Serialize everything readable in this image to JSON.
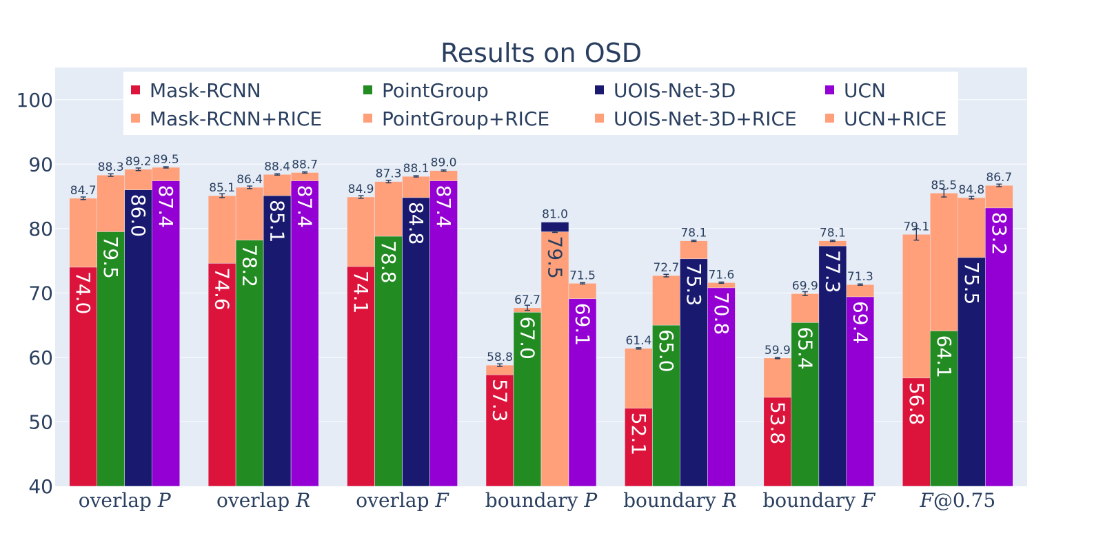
{
  "chart_data": {
    "type": "bar",
    "mode": "overlay-stacked",
    "title": "Results on OSD",
    "categories": [
      "overlap P",
      "overlap R",
      "overlap F",
      "boundary P",
      "boundary R",
      "boundary F",
      "F@0.75"
    ],
    "category_labels": [
      {
        "text": "overlap ",
        "italic": "P"
      },
      {
        "text": "overlap ",
        "italic": "R"
      },
      {
        "text": "overlap ",
        "italic": "F"
      },
      {
        "text": "boundary ",
        "italic": "P"
      },
      {
        "text": "boundary ",
        "italic": "R"
      },
      {
        "text": "boundary ",
        "italic": "F"
      },
      {
        "text": "@0.75",
        "italic_prefix": "F"
      }
    ],
    "ylim": [
      40,
      105
    ],
    "yticks": [
      40,
      50,
      60,
      70,
      80,
      90,
      100
    ],
    "grid": true,
    "legend_position": "top",
    "series": [
      {
        "name": "Mask-RCNN",
        "color": "#dc143c",
        "label_color": "#ffffff",
        "values": [
          74.0,
          74.6,
          74.1,
          57.3,
          52.1,
          53.8,
          56.8
        ],
        "labels": [
          "74.0",
          "74.6",
          "74.1",
          "57.3",
          "52.1",
          "53.8",
          "56.8"
        ],
        "rice_name": "Mask-RCNN+RICE",
        "rice_values": [
          84.7,
          85.1,
          84.9,
          58.8,
          61.4,
          59.9,
          79.1
        ],
        "rice_labels": [
          "84.7",
          "85.1",
          "84.9",
          "58.8",
          "61.4",
          "59.9",
          "79.1"
        ],
        "rice_err": [
          0.2,
          0.3,
          0.2,
          0.2,
          0.1,
          0.1,
          0.9
        ]
      },
      {
        "name": "PointGroup",
        "color": "#228b22",
        "label_color": "#ffffff",
        "values": [
          79.5,
          78.2,
          78.8,
          67.0,
          65.0,
          65.4,
          64.1
        ],
        "labels": [
          "79.5",
          "78.2",
          "78.8",
          "67.0",
          "65.0",
          "65.4",
          "64.1"
        ],
        "rice_name": "PointGroup+RICE",
        "rice_values": [
          88.3,
          86.4,
          87.3,
          67.7,
          72.7,
          69.9,
          85.5
        ],
        "rice_labels": [
          "88.3",
          "86.4",
          "87.3",
          "67.7",
          "72.7",
          "69.9",
          "85.5"
        ],
        "rice_err": [
          0.2,
          0.2,
          0.2,
          0.4,
          0.2,
          0.3,
          0.6
        ]
      },
      {
        "name": "UOIS-Net-3D",
        "color": "#191970",
        "label_color": "#ffffff",
        "values": [
          86.0,
          85.1,
          84.8,
          81.0,
          75.3,
          77.3,
          75.5
        ],
        "labels": [
          "86.0",
          "85.1",
          "84.8",
          "81.0",
          "75.3",
          "77.3",
          "75.5"
        ],
        "rice_name": "UOIS-Net-3D+RICE",
        "rice_values": [
          89.2,
          88.4,
          88.1,
          79.5,
          78.1,
          78.1,
          84.8
        ],
        "rice_labels": [
          "89.2",
          "88.4",
          "88.1",
          "79.5",
          "78.1",
          "78.1",
          "84.8"
        ],
        "rice_err": [
          0.2,
          0.1,
          0.1,
          0.1,
          0.1,
          0.1,
          0.2
        ]
      },
      {
        "name": "UCN",
        "color": "#9400d3",
        "label_color": "#ffffff",
        "values": [
          87.4,
          87.4,
          87.4,
          69.1,
          70.8,
          69.4,
          83.2
        ],
        "labels": [
          "87.4",
          "87.4",
          "87.4",
          "69.1",
          "70.8",
          "69.4",
          "83.2"
        ],
        "rice_name": "UCN+RICE",
        "rice_values": [
          89.5,
          88.7,
          89.0,
          71.5,
          71.6,
          71.3,
          86.7
        ],
        "rice_labels": [
          "89.5",
          "88.7",
          "89.0",
          "71.5",
          "71.6",
          "71.3",
          "86.7"
        ],
        "rice_err": [
          0.1,
          0.1,
          0.1,
          0.1,
          0.1,
          0.1,
          0.2
        ]
      }
    ],
    "rice_color": "#ffa07a"
  }
}
